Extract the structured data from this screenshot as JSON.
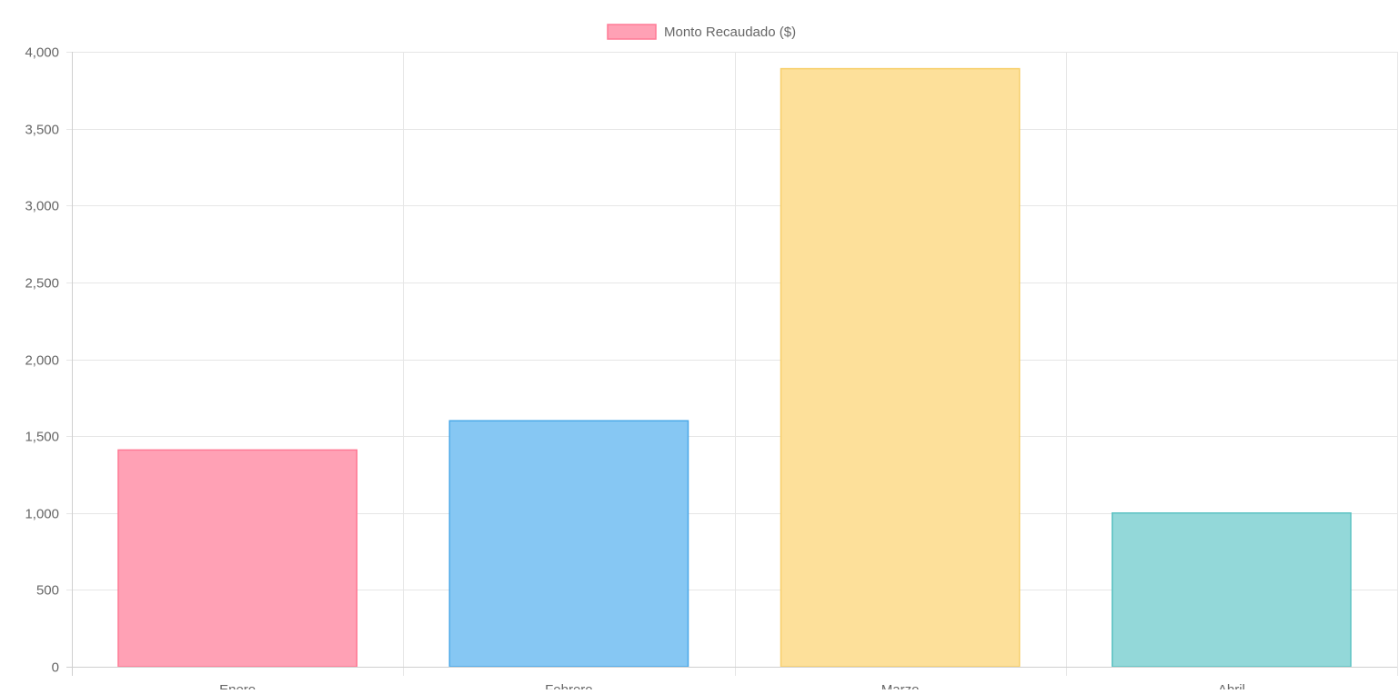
{
  "chart_data": {
    "type": "bar",
    "categories": [
      "Enero",
      "Febrero",
      "Marzo",
      "Abril"
    ],
    "series": [
      {
        "name": "Monto Recaudado ($)",
        "values": [
          1410,
          1600,
          3890,
          1000
        ]
      }
    ],
    "ylim": [
      0,
      4000
    ],
    "yticks": [
      "0",
      "500",
      "1,000",
      "1,500",
      "2,000",
      "2,500",
      "3,000",
      "3,500",
      "4,000"
    ],
    "ytick_values": [
      0,
      500,
      1000,
      1500,
      2000,
      2500,
      3000,
      3500,
      4000
    ],
    "grid": true,
    "legend_position": "top-center",
    "bar_fill_colors": [
      "#ffa1b5",
      "#86c7f3",
      "#fde09a",
      "#93d8d9"
    ],
    "bar_border_colors": [
      "#ff7a95",
      "#4aa8e8",
      "#f7cf6a",
      "#5cc2c2"
    ],
    "legend_fill": "#ffa1b5",
    "legend_border": "#ff7a95",
    "grid_color": "#e6e6e6",
    "axis_color": "#cfcfcf",
    "text_color": "#666666"
  }
}
